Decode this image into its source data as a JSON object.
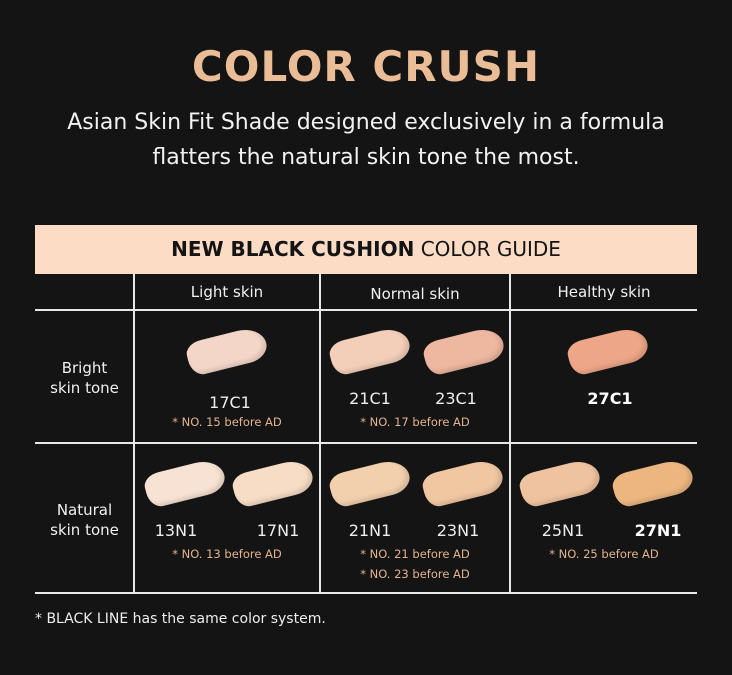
{
  "title": "COLOR CRUSH",
  "subtitle_lines": [
    "Asian Skin Fit Shade designed exclusively in a formula",
    "flatters the natural skin tone the most."
  ],
  "guide": {
    "title_bold": "NEW BLACK CUSHION",
    "title_rest": " COLOR GUIDE"
  },
  "columns": [
    "Light skin",
    "Normal skin",
    "Healthy skin"
  ],
  "rows": [
    {
      "line1": "Bright",
      "line2": "skin tone"
    },
    {
      "line1": "Natural",
      "line2": "skin tone"
    }
  ],
  "shades": {
    "c17": {
      "code": "17C1",
      "color": "#f4d6c8"
    },
    "c21": {
      "code": "21C1",
      "color": "#f3cfb9"
    },
    "c23": {
      "code": "23C1",
      "color": "#eeb79f"
    },
    "c27": {
      "code": "27C1",
      "color": "#eea688"
    },
    "n13": {
      "code": "13N1",
      "color": "#f8e2d3"
    },
    "n17": {
      "code": "17N1",
      "color": "#f7dcc6"
    },
    "n21": {
      "code": "21N1",
      "color": "#f2cfad"
    },
    "n23": {
      "code": "23N1",
      "color": "#f1c7a2"
    },
    "n25": {
      "code": "25N1",
      "color": "#efc39f"
    },
    "n27": {
      "code": "27N1",
      "color": "#edb680"
    }
  },
  "notes": {
    "c17": "* NO. 15 before AD",
    "c21": "* NO. 17 before AD",
    "n13": "* NO. 13 before AD",
    "n21": "* NO. 21 before AD",
    "n23": "* NO. 23 before AD",
    "n25": "* NO. 25 before AD"
  },
  "footnote": "* BLACK LINE has the same color system."
}
